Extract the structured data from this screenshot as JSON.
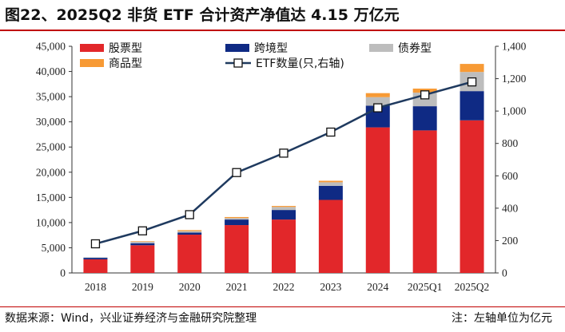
{
  "title": "图22、2025Q2 非货 ETF 合计资产净值达 4.15 万亿元",
  "source": "数据来源：Wind，兴业证券经济与金融研究院整理",
  "note": "注：左轴单位为亿元",
  "colors": {
    "equity": "#e2272a",
    "cross_border": "#0f2a84",
    "bond": "#bdbdbd",
    "commodity": "#f79a35",
    "line": "#1f3a5f",
    "rule": "#c00000"
  },
  "chart_data": {
    "type": "bar",
    "stacked": true,
    "categories": [
      "2018",
      "2019",
      "2020",
      "2021",
      "2022",
      "2023",
      "2024",
      "2025Q1",
      "2025Q2"
    ],
    "series": [
      {
        "name": "股票型",
        "axis": "left",
        "color": "#e2272a",
        "values": [
          2700,
          5500,
          7600,
          9500,
          10600,
          14500,
          28900,
          28300,
          30300
        ]
      },
      {
        "name": "跨境型",
        "axis": "left",
        "color": "#0f2a84",
        "values": [
          300,
          400,
          400,
          1100,
          1900,
          2800,
          4300,
          4800,
          5800
        ]
      },
      {
        "name": "债券型",
        "axis": "left",
        "color": "#bdbdbd",
        "values": [
          100,
          300,
          300,
          300,
          600,
          700,
          1700,
          2700,
          3800
        ]
      },
      {
        "name": "商品型",
        "axis": "left",
        "color": "#f79a35",
        "values": [
          0,
          100,
          200,
          200,
          200,
          300,
          800,
          800,
          1600
        ]
      }
    ],
    "line_series": {
      "name": "ETF数量(只,右轴)",
      "axis": "right",
      "type": "line",
      "marker": "square",
      "values": [
        180,
        260,
        360,
        620,
        740,
        870,
        1020,
        1100,
        1180
      ]
    },
    "y_left": {
      "min": 0,
      "max": 45000,
      "step": 5000,
      "ticks": [
        "0",
        "5,000",
        "10,000",
        "15,000",
        "20,000",
        "25,000",
        "30,000",
        "35,000",
        "40,000",
        "45,000"
      ]
    },
    "y_right": {
      "min": 0,
      "max": 1400,
      "step": 200,
      "ticks": [
        "0",
        "200",
        "400",
        "600",
        "800",
        "1,000",
        "1,200",
        "1,400"
      ]
    },
    "legend": {
      "position": "top-left",
      "items": [
        "股票型",
        "跨境型",
        "债券型",
        "商品型",
        "ETF数量(只,右轴)"
      ]
    },
    "grid": false
  }
}
